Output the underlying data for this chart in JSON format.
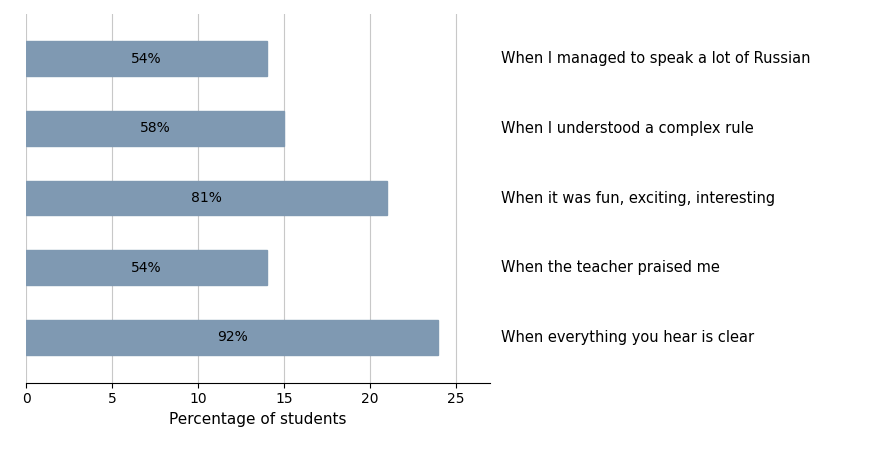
{
  "categories": [
    "When I managed to speak a lot of Russian",
    "When I understood a complex rule",
    "When it was fun, exciting, interesting",
    "When the teacher praised me",
    "When everything you hear is clear"
  ],
  "bar_values_scaled": [
    14.0,
    15.0,
    21.0,
    14.0,
    24.0
  ],
  "labels": [
    "54%",
    "58%",
    "81%",
    "54%",
    "92%"
  ],
  "bar_color": "#7f99b2",
  "xlabel": "Percentage of students",
  "xlim": [
    0,
    27
  ],
  "xticks": [
    0,
    5,
    10,
    15,
    20,
    25
  ],
  "grid_color": "#c8c8c8",
  "bar_height": 0.5,
  "label_fontsize": 10,
  "xlabel_fontsize": 11,
  "tick_fontsize": 10,
  "category_fontsize": 10.5
}
